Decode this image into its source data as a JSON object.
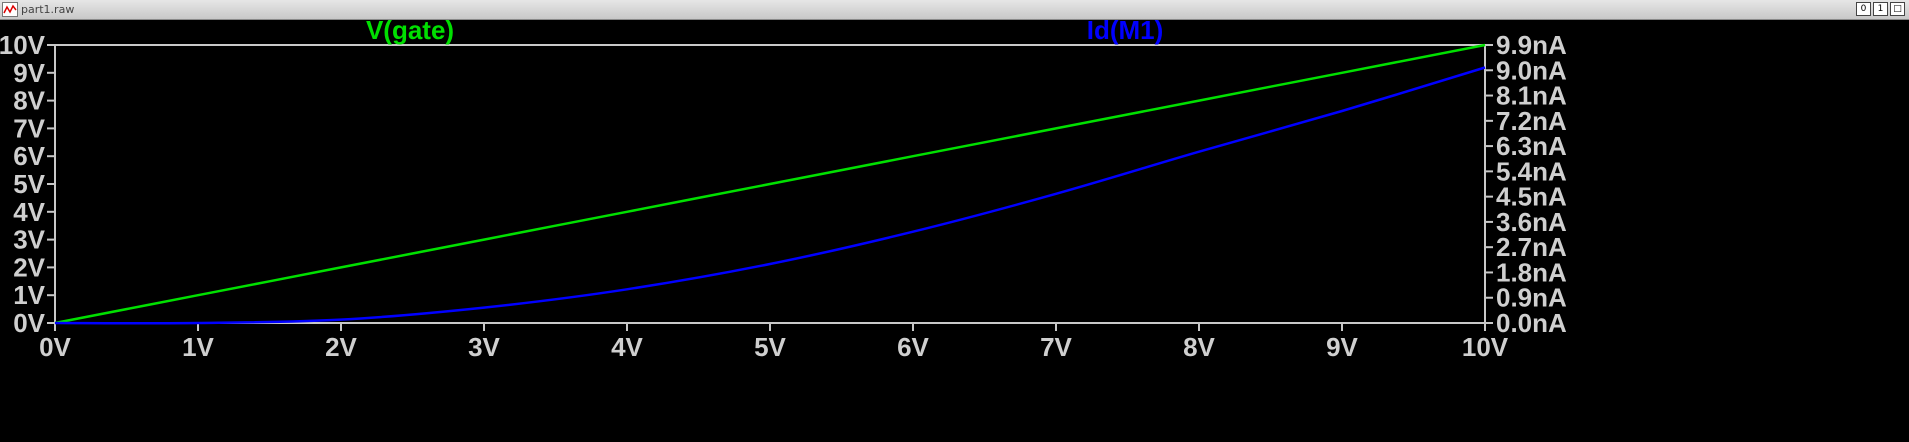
{
  "window": {
    "title": "part1.raw",
    "controls": [
      "0",
      "1",
      "□"
    ]
  },
  "colors": {
    "background": "#000000",
    "frame": "#c8c8c8",
    "tick_text": "#cfcfcf",
    "vgate": "#00e000",
    "idm1": "#0000ff"
  },
  "chart_data": {
    "type": "line",
    "grid": false,
    "legend_placement": "top",
    "x": {
      "range": [
        0,
        10
      ],
      "unit": "V",
      "ticks": [
        0,
        1,
        2,
        3,
        4,
        5,
        6,
        7,
        8,
        9,
        10
      ],
      "tick_labels": [
        "0V",
        "1V",
        "2V",
        "3V",
        "4V",
        "5V",
        "6V",
        "7V",
        "8V",
        "9V",
        "10V"
      ]
    },
    "y_left": {
      "range": [
        0,
        10
      ],
      "unit": "V",
      "ticks": [
        0,
        1,
        2,
        3,
        4,
        5,
        6,
        7,
        8,
        9,
        10
      ],
      "tick_labels": [
        "0V",
        "1V",
        "2V",
        "3V",
        "4V",
        "5V",
        "6V",
        "7V",
        "8V",
        "9V",
        "10V"
      ]
    },
    "y_right": {
      "range": [
        0,
        9.9
      ],
      "unit": "nA",
      "ticks": [
        0,
        0.9,
        1.8,
        2.7,
        3.6,
        4.5,
        5.4,
        6.3,
        7.2,
        8.1,
        9.0,
        9.9
      ],
      "tick_labels": [
        "0.0nA",
        "0.9nA",
        "1.8nA",
        "2.7nA",
        "3.6nA",
        "4.5nA",
        "5.4nA",
        "6.3nA",
        "7.2nA",
        "8.1nA",
        "9.0nA",
        "9.9nA"
      ]
    },
    "series": [
      {
        "name": "V(gate)",
        "axis": "left",
        "color": "#00e000",
        "x": [
          0,
          1,
          2,
          3,
          4,
          5,
          6,
          7,
          8,
          9,
          10
        ],
        "y": [
          0,
          1,
          2,
          3,
          4,
          5,
          6,
          7,
          8,
          9,
          10
        ]
      },
      {
        "name": "Id(M1)",
        "axis": "right",
        "color": "#0000ff",
        "x": [
          0,
          1,
          2,
          3,
          4,
          5,
          6,
          7,
          8,
          9,
          10
        ],
        "y": [
          0.0,
          0.0,
          0.12,
          0.55,
          1.2,
          2.1,
          3.25,
          4.6,
          6.1,
          7.55,
          9.1
        ]
      }
    ]
  }
}
